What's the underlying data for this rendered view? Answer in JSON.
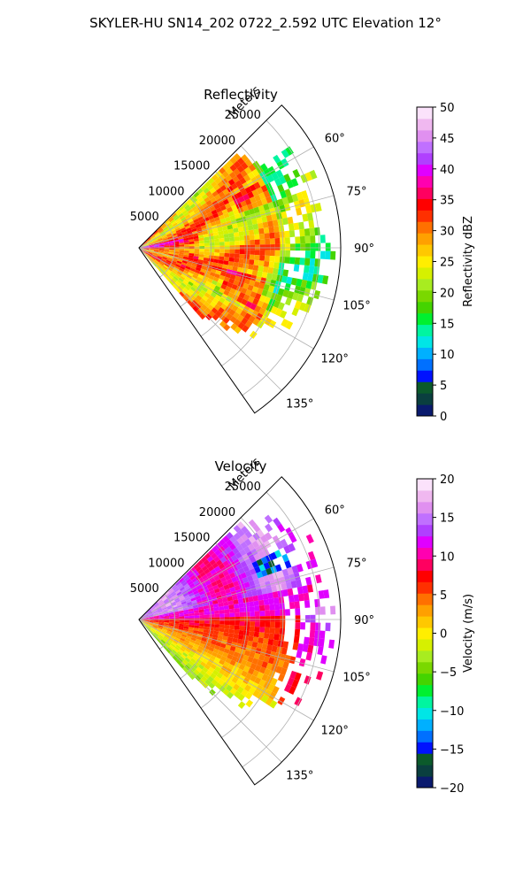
{
  "figure": {
    "suptitle": "SKYLER-HU  SN14_202  0722_2.592 UTC Elevation 12°"
  },
  "chart_data": [
    {
      "type": "heatmap",
      "subtype": "polar-sector-ppi",
      "title": "Reflectivity",
      "range_label": "Meters",
      "range_ticks": [
        5000,
        10000,
        15000,
        20000,
        25000
      ],
      "range_max": 28000,
      "azimuth_range_deg": [
        45,
        145
      ],
      "azimuth_ticks": [
        "60°",
        "75°",
        "90°",
        "105°",
        "120°",
        "135°"
      ],
      "azimuth_tick_values": [
        60,
        75,
        90,
        105,
        120,
        135
      ],
      "colorbar": {
        "label": "Reflectivity dBZ",
        "min": 0,
        "max": 50,
        "ticks": [
          0,
          5,
          10,
          15,
          20,
          25,
          30,
          35,
          40,
          45,
          50
        ]
      },
      "colormap": [
        "#0a1a6e",
        "#0a3f3f",
        "#0b5a2b",
        "#0012ff",
        "#0070ff",
        "#00b0ff",
        "#00e6e6",
        "#00f5a0",
        "#00f030",
        "#44d400",
        "#7ad800",
        "#a8ec20",
        "#d6f000",
        "#ffee00",
        "#ffc800",
        "#ffa000",
        "#ff7000",
        "#ff3000",
        "#ff0000",
        "#ff0060",
        "#ff00b0",
        "#e000ff",
        "#b040ff",
        "#c070ff",
        "#e090f0",
        "#f0b8f0",
        "#fbe2fb"
      ],
      "grid": true
    },
    {
      "type": "heatmap",
      "subtype": "polar-sector-ppi",
      "title": "Velocity",
      "range_label": "Meters",
      "range_ticks": [
        5000,
        10000,
        15000,
        20000,
        25000
      ],
      "range_max": 28000,
      "azimuth_range_deg": [
        45,
        145
      ],
      "azimuth_ticks": [
        "60°",
        "75°",
        "90°",
        "105°",
        "120°",
        "135°"
      ],
      "azimuth_tick_values": [
        60,
        75,
        90,
        105,
        120,
        135
      ],
      "colorbar": {
        "label": "Velocity (m/s)",
        "min": -20,
        "max": 20,
        "ticks": [
          -20,
          -15,
          -10,
          -5,
          0,
          5,
          10,
          15,
          20
        ],
        "tick_labels": [
          "−20",
          "−15",
          "−10",
          "−5",
          "0",
          "5",
          "10",
          "15",
          "20"
        ]
      },
      "colormap": [
        "#0a1a6e",
        "#0a3f3f",
        "#0b5a2b",
        "#0012ff",
        "#0070ff",
        "#00b0ff",
        "#00e6e6",
        "#00f5a0",
        "#00f030",
        "#44d400",
        "#7ad800",
        "#a8ec20",
        "#d6f000",
        "#ffee00",
        "#ffc800",
        "#ffa000",
        "#ff7000",
        "#ff3000",
        "#ff0000",
        "#ff0060",
        "#ff00b0",
        "#e000ff",
        "#b040ff",
        "#c070ff",
        "#e090f0",
        "#f0b8f0",
        "#fbe2fb"
      ],
      "grid": true
    }
  ]
}
